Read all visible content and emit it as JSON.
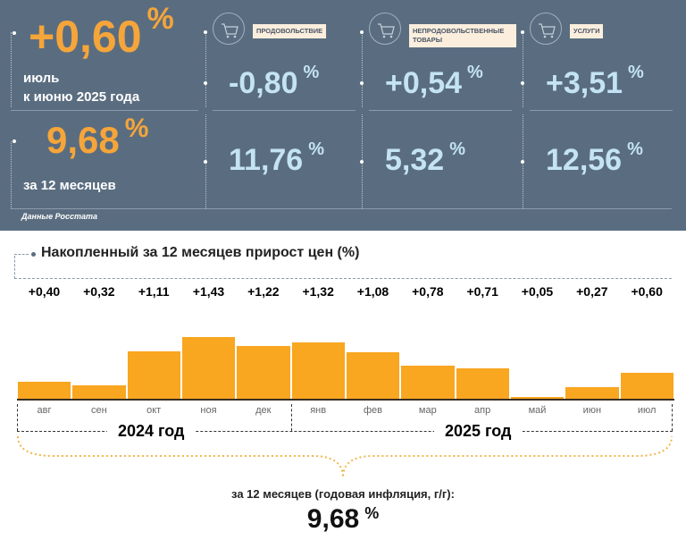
{
  "summary": {
    "monthly_value": "+0,60",
    "pct": "%",
    "monthly_label1": "июль",
    "monthly_label2": "к июню 2025 года",
    "annual_value": "9,68",
    "annual_label": "за 12 месяцев",
    "source": "Данные Росстата"
  },
  "categories": [
    {
      "name": "ПРОДОВОЛЬСТВИЕ",
      "icon": "shopping-cart-icon",
      "monthly": "-0,80",
      "annual": "11,76"
    },
    {
      "name": "НЕПРОДОВОЛЬСТВЕННЫЕ ТОВАРЫ",
      "icon": "clothes-bag-icon",
      "monthly": "+0,54",
      "annual": "5,32"
    },
    {
      "name": "УСЛУГИ",
      "icon": "scissors-comb-icon",
      "monthly": "+3,51",
      "annual": "12,56"
    }
  ],
  "colors": {
    "panel": "#5a6d80",
    "accent": "#f5a53a",
    "value": "#c4e3f3",
    "bar": "#f9a620"
  },
  "chart_data": {
    "type": "bar",
    "title": "Накопленный за 12 месяцев прирост цен (%)",
    "categories": [
      "авг",
      "сен",
      "окт",
      "ноя",
      "дек",
      "янв",
      "фев",
      "мар",
      "апр",
      "май",
      "июн",
      "июл"
    ],
    "values": [
      0.4,
      0.32,
      1.11,
      1.43,
      1.22,
      1.32,
      1.08,
      0.78,
      0.71,
      0.05,
      0.27,
      0.6
    ],
    "data_labels": [
      "+0,40",
      "+0,32",
      "+1,11",
      "+1,43",
      "+1,22",
      "+1,32",
      "+1,08",
      "+0,78",
      "+0,71",
      "+0,05",
      "+0,27",
      "+0,60"
    ],
    "year_groups": [
      "2024 год",
      "2025 год"
    ],
    "grid": false
  },
  "footer": {
    "label": "за 12 месяцев (годовая инфляция, г/г):",
    "value": "9,68",
    "pct": "%"
  }
}
